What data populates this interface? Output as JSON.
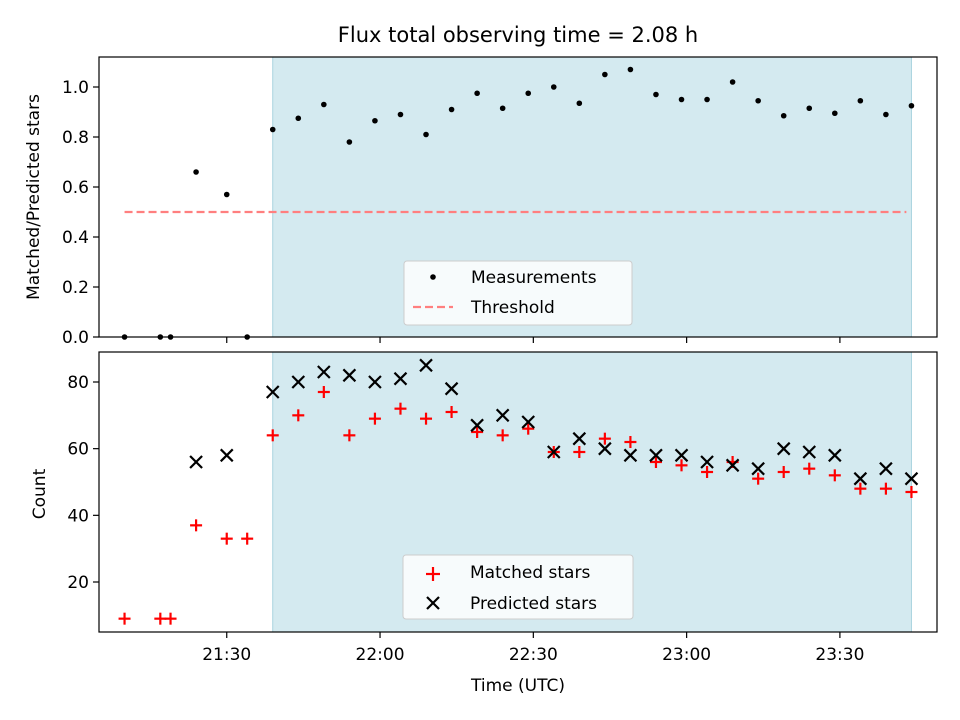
{
  "chart_data": [
    {
      "type": "scatter",
      "title": "Flux total observing time = 2.08 h",
      "ylabel": "Matched/Predicted stars",
      "xlabel": "",
      "ylim": [
        0,
        1.12
      ],
      "yticks": [
        "0.0",
        "0.2",
        "0.4",
        "0.6",
        "0.8",
        "1.0"
      ],
      "ytick_values": [
        0,
        0.2,
        0.4,
        0.6,
        0.8,
        1.0
      ],
      "shaded_region": {
        "start": "21:39",
        "end": "23:44",
        "color": "#d4eaf0"
      },
      "threshold": {
        "value": 0.5,
        "start": "21:10",
        "end": "23:43",
        "color": "#ff7f7f"
      },
      "legend": {
        "placement": "lower-center",
        "entries": [
          "Measurements",
          "Threshold"
        ]
      },
      "series": [
        {
          "name": "Measurements",
          "marker": "dot",
          "color": "#000000",
          "x": [
            "21:10",
            "21:17",
            "21:19",
            "21:24",
            "21:30",
            "21:34",
            "21:39",
            "21:44",
            "21:49",
            "21:54",
            "21:59",
            "22:04",
            "22:09",
            "22:14",
            "22:19",
            "22:24",
            "22:29",
            "22:34",
            "22:39",
            "22:44",
            "22:49",
            "22:54",
            "22:59",
            "23:04",
            "23:09",
            "23:14",
            "23:19",
            "23:24",
            "23:29",
            "23:34",
            "23:39",
            "23:44"
          ],
          "y": [
            0.0,
            0.0,
            0.0,
            0.66,
            0.57,
            0.0,
            0.83,
            0.875,
            0.93,
            0.78,
            0.865,
            0.89,
            0.81,
            0.91,
            0.975,
            0.915,
            0.975,
            1.0,
            0.935,
            1.05,
            1.07,
            0.97,
            0.95,
            0.95,
            1.02,
            0.945,
            0.885,
            0.915,
            0.895,
            0.945,
            0.89,
            0.925
          ]
        }
      ]
    },
    {
      "type": "scatter",
      "title": "",
      "ylabel": "Count",
      "xlabel": "Time (UTC)",
      "ylim": [
        5,
        89
      ],
      "yticks": [
        "20",
        "40",
        "60",
        "80"
      ],
      "ytick_values": [
        20,
        40,
        60,
        80
      ],
      "xticks": [
        "21:30",
        "22:00",
        "22:30",
        "23:00",
        "23:30"
      ],
      "shaded_region": {
        "start": "21:39",
        "end": "23:44",
        "color": "#d4eaf0"
      },
      "legend": {
        "placement": "lower-center",
        "entries": [
          "Matched stars",
          "Predicted stars"
        ]
      },
      "series": [
        {
          "name": "Matched stars",
          "marker": "plus",
          "color": "#ff0000",
          "x": [
            "21:10",
            "21:17",
            "21:19",
            "21:24",
            "21:30",
            "21:34",
            "21:39",
            "21:44",
            "21:49",
            "21:54",
            "21:59",
            "22:04",
            "22:09",
            "22:14",
            "22:19",
            "22:24",
            "22:29",
            "22:34",
            "22:39",
            "22:44",
            "22:49",
            "22:54",
            "22:59",
            "23:04",
            "23:09",
            "23:14",
            "23:19",
            "23:24",
            "23:29",
            "23:34",
            "23:39",
            "23:44"
          ],
          "y": [
            9,
            9,
            9,
            37,
            33,
            33,
            64,
            70,
            77,
            64,
            69,
            72,
            69,
            71,
            65,
            64,
            66,
            59,
            59,
            63,
            62,
            56,
            55,
            53,
            56,
            51,
            53,
            54,
            52,
            48,
            48,
            47
          ]
        },
        {
          "name": "Predicted stars",
          "marker": "x",
          "color": "#000000",
          "x": [
            "21:24",
            "21:30",
            "21:39",
            "21:44",
            "21:49",
            "21:54",
            "21:59",
            "22:04",
            "22:09",
            "22:14",
            "22:19",
            "22:24",
            "22:29",
            "22:34",
            "22:39",
            "22:44",
            "22:49",
            "22:54",
            "22:59",
            "23:04",
            "23:09",
            "23:14",
            "23:19",
            "23:24",
            "23:29",
            "23:34",
            "23:39",
            "23:44"
          ],
          "y": [
            56,
            58,
            77,
            80,
            83,
            82,
            80,
            81,
            85,
            78,
            67,
            70,
            68,
            59,
            63,
            60,
            58,
            58,
            58,
            56,
            55,
            54,
            60,
            59,
            58,
            51,
            54,
            51
          ]
        }
      ]
    }
  ]
}
